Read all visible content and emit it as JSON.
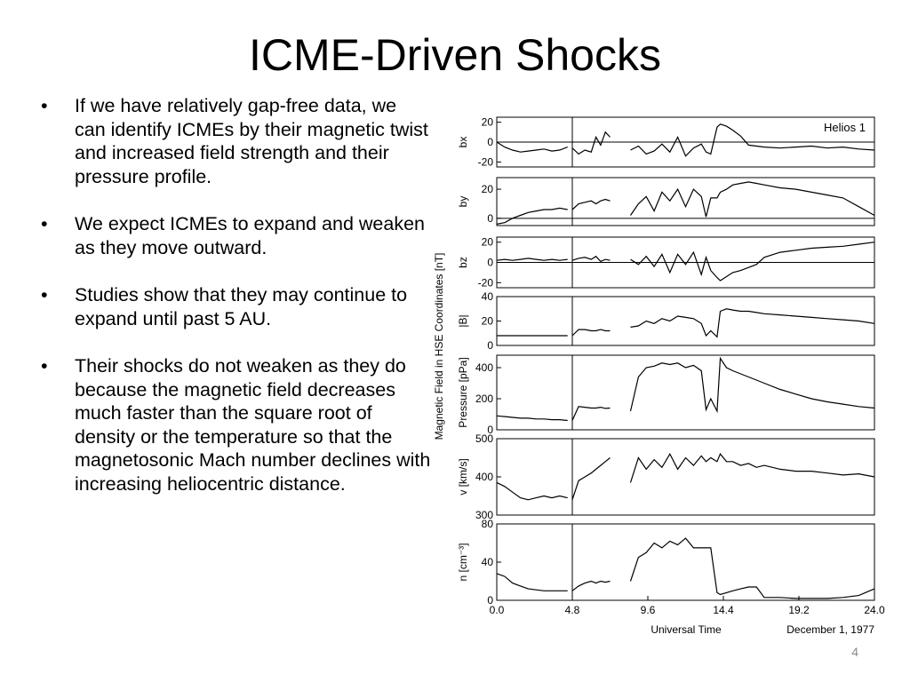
{
  "slide": {
    "title": "ICME-Driven Shocks",
    "bullets": [
      "If we have relatively gap-free data, we can identify ICMEs by their magnetic twist and increased field strength and their pressure profile.",
      "We expect ICMEs to expand and weaken as they move outward.",
      "Studies show that they may continue to expand until past 5 AU.",
      "Their shocks do not weaken as they do because the magnetic field decreases much faster than the square root of density or the temperature so that the magnetosonic Mach number declines with increasing heliocentric distance."
    ],
    "page_number": "4"
  },
  "chart_data": {
    "type": "line",
    "annotation": "Helios 1",
    "group_ylabel": "Magnetic Field in HSE Coordinates [nT]",
    "xlabel": "Universal Time",
    "date_label": "December 1, 1977",
    "xlim": [
      0,
      24
    ],
    "xticks": [
      "0.0",
      "4.8",
      "9.6",
      "14.4",
      "19.2",
      "24.0"
    ],
    "vertical_marker_x": 4.8,
    "line_color": "#000000",
    "panels": [
      {
        "ylabel": "bx",
        "ylim": [
          -25,
          25
        ],
        "yticks": [
          "20",
          "0",
          "-20"
        ],
        "zero_line": true,
        "x": [
          0,
          0.5,
          1,
          1.5,
          2,
          2.5,
          3,
          3.5,
          4,
          4.5,
          4.8,
          5.2,
          5.6,
          6,
          6.3,
          6.6,
          6.9,
          7.2,
          8.5,
          9,
          9.5,
          10,
          10.5,
          11,
          11.5,
          12,
          12.5,
          13,
          13.3,
          13.6,
          14,
          14.2,
          14.6,
          15,
          15.5,
          16,
          16.5,
          17,
          18,
          19,
          20,
          21,
          22,
          23,
          24
        ],
        "y": [
          0,
          -5,
          -8,
          -10,
          -9,
          -8,
          -7,
          -9,
          -8,
          -5,
          -6,
          -12,
          -8,
          -10,
          5,
          -3,
          10,
          5,
          -8,
          -4,
          -12,
          -9,
          -2,
          -10,
          5,
          -14,
          -6,
          -2,
          -10,
          -12,
          15,
          18,
          16,
          12,
          6,
          -3,
          -4,
          -5,
          -6,
          -5,
          -4,
          -6,
          -5,
          -7,
          -8
        ]
      },
      {
        "ylabel": "by",
        "ylim": [
          -5,
          28
        ],
        "yticks": [
          "20",
          "0"
        ],
        "zero_line": true,
        "x": [
          0,
          0.5,
          1,
          1.5,
          2,
          2.5,
          3,
          3.5,
          4,
          4.5,
          4.8,
          5.2,
          5.6,
          6,
          6.3,
          6.6,
          6.9,
          7.2,
          8.5,
          9,
          9.5,
          10,
          10.5,
          11,
          11.5,
          12,
          12.5,
          13,
          13.3,
          13.6,
          14,
          14.2,
          14.6,
          15,
          15.5,
          16,
          16.5,
          17,
          18,
          19,
          20,
          21,
          22,
          23,
          24
        ],
        "y": [
          -4,
          -3,
          0,
          2,
          4,
          5,
          6,
          6,
          7,
          6,
          6,
          10,
          11,
          12,
          10,
          12,
          13,
          12,
          2,
          10,
          15,
          5,
          18,
          12,
          20,
          8,
          20,
          15,
          1,
          14,
          14,
          18,
          20,
          23,
          24,
          25,
          24,
          23,
          21,
          20,
          18,
          16,
          14,
          8,
          2
        ]
      },
      {
        "ylabel": "bz",
        "ylim": [
          -25,
          25
        ],
        "yticks": [
          "20",
          "0",
          "-20"
        ],
        "zero_line": true,
        "x": [
          0,
          0.5,
          1,
          1.5,
          2,
          2.5,
          3,
          3.5,
          4,
          4.5,
          4.8,
          5.2,
          5.6,
          6,
          6.3,
          6.6,
          6.9,
          7.2,
          8.5,
          9,
          9.5,
          10,
          10.5,
          11,
          11.5,
          12,
          12.5,
          13,
          13.3,
          13.6,
          14,
          14.2,
          14.6,
          15,
          15.5,
          16,
          16.5,
          17,
          18,
          19,
          20,
          21,
          22,
          23,
          24
        ],
        "y": [
          2,
          3,
          2,
          3,
          4,
          3,
          2,
          3,
          2,
          3,
          2,
          4,
          5,
          3,
          6,
          1,
          3,
          2,
          3,
          -2,
          6,
          -4,
          8,
          -10,
          8,
          -2,
          10,
          -12,
          5,
          -8,
          -15,
          -18,
          -14,
          -10,
          -8,
          -5,
          -2,
          5,
          10,
          12,
          14,
          15,
          16,
          18,
          20
        ]
      },
      {
        "ylabel": "|B|",
        "ylim": [
          0,
          40
        ],
        "yticks": [
          "40",
          "20",
          "0"
        ],
        "zero_line": false,
        "x": [
          0,
          0.5,
          1,
          1.5,
          2,
          2.5,
          3,
          3.5,
          4,
          4.5,
          4.8,
          5.2,
          5.6,
          6,
          6.3,
          6.6,
          6.9,
          7.2,
          8.5,
          9,
          9.5,
          10,
          10.5,
          11,
          11.5,
          12,
          12.5,
          13,
          13.3,
          13.6,
          14,
          14.2,
          14.6,
          15,
          15.5,
          16,
          16.5,
          17,
          18,
          19,
          20,
          21,
          22,
          23,
          24
        ],
        "y": [
          8,
          8,
          8,
          8,
          8,
          8,
          8,
          8,
          8,
          8,
          8,
          13,
          13,
          12,
          12,
          13,
          12,
          12,
          15,
          16,
          20,
          18,
          22,
          20,
          24,
          23,
          22,
          18,
          8,
          12,
          7,
          28,
          30,
          29,
          28,
          28,
          27,
          26,
          25,
          24,
          23,
          22,
          21,
          20,
          18
        ]
      },
      {
        "ylabel": "Pressure [pPa]",
        "ylim": [
          0,
          480
        ],
        "yticks": [
          "400",
          "200",
          "0"
        ],
        "zero_line": false,
        "x": [
          0,
          0.5,
          1,
          1.5,
          2,
          2.5,
          3,
          3.5,
          4,
          4.5,
          4.8,
          5.2,
          5.6,
          6,
          6.3,
          6.6,
          6.9,
          7.2,
          8.5,
          9,
          9.5,
          10,
          10.5,
          11,
          11.5,
          12,
          12.5,
          13,
          13.3,
          13.6,
          14,
          14.2,
          14.6,
          15,
          15.5,
          16,
          16.5,
          17,
          18,
          19,
          20,
          21,
          22,
          23,
          24
        ],
        "y": [
          90,
          85,
          80,
          75,
          75,
          70,
          70,
          65,
          65,
          60,
          60,
          150,
          145,
          140,
          140,
          145,
          138,
          140,
          120,
          340,
          400,
          410,
          430,
          420,
          430,
          400,
          415,
          380,
          130,
          200,
          120,
          460,
          400,
          380,
          360,
          340,
          320,
          300,
          260,
          230,
          200,
          180,
          165,
          150,
          140
        ]
      },
      {
        "ylabel": "v [km/s]",
        "ylim": [
          300,
          500
        ],
        "yticks": [
          "500",
          "400",
          "300"
        ],
        "zero_line": false,
        "x": [
          0,
          0.5,
          1,
          1.5,
          2,
          2.5,
          3,
          3.5,
          4,
          4.5,
          4.8,
          5.2,
          5.6,
          6,
          6.3,
          6.6,
          6.9,
          7.2,
          8.5,
          9,
          9.5,
          10,
          10.5,
          11,
          11.5,
          12,
          12.5,
          13,
          13.3,
          13.6,
          14,
          14.2,
          14.6,
          15,
          15.5,
          16,
          16.5,
          17,
          18,
          19,
          20,
          21,
          22,
          23,
          24
        ],
        "y": [
          385,
          375,
          360,
          345,
          340,
          345,
          350,
          345,
          350,
          345,
          340,
          390,
          400,
          410,
          420,
          430,
          440,
          450,
          385,
          450,
          420,
          445,
          425,
          460,
          420,
          450,
          430,
          455,
          440,
          450,
          440,
          460,
          440,
          440,
          430,
          435,
          425,
          430,
          420,
          415,
          415,
          410,
          405,
          408,
          400
        ]
      },
      {
        "ylabel": "n [cm⁻³]",
        "ylim": [
          0,
          80
        ],
        "yticks": [
          "80",
          "40",
          "0"
        ],
        "zero_line": false,
        "x": [
          0,
          0.5,
          1,
          1.5,
          2,
          2.5,
          3,
          3.5,
          4,
          4.5,
          4.8,
          5.2,
          5.6,
          6,
          6.3,
          6.6,
          6.9,
          7.2,
          8.5,
          9,
          9.5,
          10,
          10.5,
          11,
          11.5,
          12,
          12.5,
          13,
          13.3,
          13.6,
          14,
          14.2,
          14.6,
          15,
          15.5,
          16,
          16.5,
          17,
          18,
          19,
          20,
          21,
          22,
          23,
          24
        ],
        "y": [
          28,
          25,
          18,
          15,
          12,
          11,
          10,
          10,
          10,
          10,
          10,
          15,
          18,
          20,
          18,
          20,
          19,
          20,
          20,
          45,
          50,
          60,
          55,
          62,
          58,
          65,
          55,
          55,
          55,
          55,
          8,
          6,
          8,
          10,
          12,
          14,
          14,
          3,
          3,
          2,
          2,
          2,
          3,
          5,
          12
        ]
      }
    ]
  }
}
